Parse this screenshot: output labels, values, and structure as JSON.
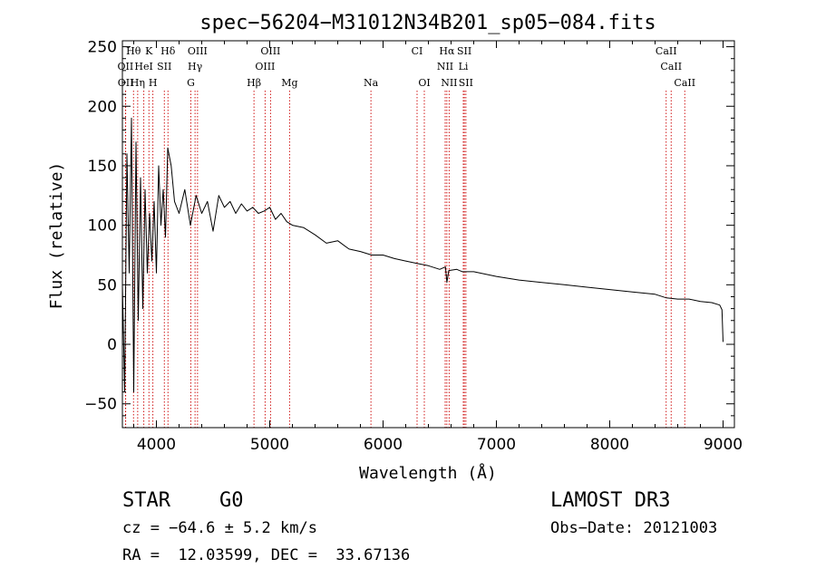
{
  "chart_data": {
    "type": "line",
    "title": "spec−56204−M31012N34B201_sp05−084.fits",
    "xlabel": "Wavelength (Å)",
    "ylabel": "Flux (relative)",
    "xlim": [
      3700,
      9100
    ],
    "ylim": [
      -70,
      255
    ],
    "xticks": [
      4000,
      5000,
      6000,
      7000,
      8000,
      9000
    ],
    "xtick_labels": [
      "4000",
      "5000",
      "6000",
      "7000",
      "8000",
      "9000"
    ],
    "yticks": [
      -50,
      0,
      50,
      100,
      150,
      200,
      250
    ],
    "ytick_labels": [
      "−50",
      "0",
      "50",
      "100",
      "150",
      "200",
      "250"
    ],
    "grid": false,
    "series": [
      {
        "name": "flux",
        "x": [
          3700,
          3720,
          3740,
          3760,
          3780,
          3800,
          3820,
          3840,
          3860,
          3880,
          3900,
          3920,
          3940,
          3960,
          3980,
          4000,
          4020,
          4040,
          4060,
          4080,
          4100,
          4130,
          4160,
          4200,
          4250,
          4300,
          4350,
          4400,
          4450,
          4500,
          4550,
          4600,
          4650,
          4700,
          4750,
          4800,
          4850,
          4900,
          4950,
          5000,
          5050,
          5100,
          5150,
          5200,
          5300,
          5400,
          5500,
          5600,
          5700,
          5800,
          5900,
          6000,
          6100,
          6200,
          6300,
          6400,
          6500,
          6550,
          6563,
          6580,
          6650,
          6700,
          6800,
          6900,
          7000,
          7200,
          7400,
          7600,
          7800,
          8000,
          8200,
          8400,
          8500,
          8600,
          8700,
          8800,
          8900,
          8970,
          8990,
          9000
        ],
        "y": [
          50,
          -40,
          160,
          60,
          190,
          -40,
          170,
          20,
          140,
          30,
          130,
          60,
          110,
          70,
          120,
          60,
          150,
          100,
          130,
          90,
          165,
          150,
          120,
          110,
          130,
          100,
          125,
          110,
          120,
          95,
          125,
          115,
          120,
          110,
          118,
          112,
          115,
          110,
          112,
          115,
          105,
          110,
          103,
          100,
          98,
          92,
          85,
          87,
          80,
          78,
          75,
          75,
          72,
          70,
          68,
          66,
          63,
          65,
          52,
          62,
          63,
          61,
          61,
          59,
          57,
          54,
          52,
          50,
          48,
          46,
          44,
          42,
          39,
          38,
          38,
          36,
          35,
          33,
          29,
          2
        ]
      }
    ],
    "lines": [
      {
        "name": "Hθ",
        "x": 3798,
        "row": 0
      },
      {
        "name": "K",
        "x": 3934,
        "row": 0
      },
      {
        "name": "Hδ",
        "x": 4102,
        "row": 0
      },
      {
        "name": "OIII",
        "x": 4363,
        "row": 0
      },
      {
        "name": "OIII",
        "x": 5007,
        "row": 0
      },
      {
        "name": "CI",
        "x": 6300,
        "row": 0
      },
      {
        "name": "Hα",
        "x": 6563,
        "row": 0
      },
      {
        "name": "SII",
        "x": 6717,
        "row": 0
      },
      {
        "name": "CaII",
        "x": 8498,
        "row": 0
      },
      {
        "name": "OII",
        "x": 3727,
        "row": 1
      },
      {
        "name": "HeI",
        "x": 3889,
        "row": 1
      },
      {
        "name": "SII",
        "x": 4070,
        "row": 1
      },
      {
        "name": "Hγ",
        "x": 4341,
        "row": 1
      },
      {
        "name": "OIII",
        "x": 4959,
        "row": 1
      },
      {
        "name": "NII",
        "x": 6548,
        "row": 1
      },
      {
        "name": "Li",
        "x": 6708,
        "row": 1
      },
      {
        "name": "CaII",
        "x": 8542,
        "row": 1
      },
      {
        "name": "OII",
        "x": 3729,
        "row": 2
      },
      {
        "name": "Hη",
        "x": 3835,
        "row": 2
      },
      {
        "name": "H",
        "x": 3969,
        "row": 2
      },
      {
        "name": "G",
        "x": 4304,
        "row": 2
      },
      {
        "name": "Hβ",
        "x": 4861,
        "row": 2
      },
      {
        "name": "Mg",
        "x": 5175,
        "row": 2
      },
      {
        "name": "Na",
        "x": 5893,
        "row": 2
      },
      {
        "name": "OI",
        "x": 6364,
        "row": 2
      },
      {
        "name": "NII",
        "x": 6583,
        "row": 2
      },
      {
        "name": "SII",
        "x": 6731,
        "row": 2
      },
      {
        "name": "CaII",
        "x": 8662,
        "row": 2
      }
    ]
  },
  "info": {
    "class": "STAR",
    "subclass": "G0",
    "survey": "LAMOST DR3",
    "cz": "cz = −64.6 ± 5.2 km/s",
    "obs_date": "Obs−Date: 20121003",
    "radec": "RA =  12.03599, DEC =  33.67136"
  },
  "colors": {
    "spectrum": "#000000",
    "line_markers": "#cc0000",
    "axes": "#000000"
  }
}
